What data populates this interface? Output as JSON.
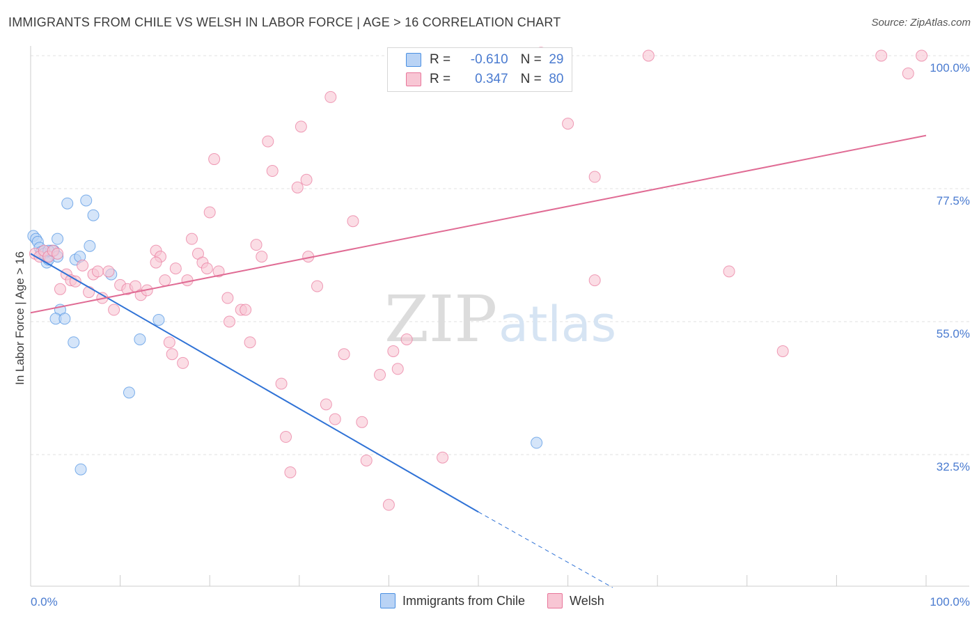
{
  "title": "IMMIGRANTS FROM CHILE VS WELSH IN LABOR FORCE | AGE > 16 CORRELATION CHART",
  "source": "Source: ZipAtlas.com",
  "watermark": {
    "zip": "ZIP",
    "atlas": "atlas"
  },
  "legend_box": {
    "rows": [
      {
        "r_label": "R =",
        "r_value": "-0.610",
        "n_label": "N =",
        "n_value": "29",
        "color": "#b9d3f5"
      },
      {
        "r_label": "R =",
        "r_value": "0.347",
        "n_label": "N =",
        "n_value": "80",
        "color": "#f8c6d4"
      }
    ]
  },
  "bottom_legend": [
    {
      "label": "Immigrants from Chile",
      "color": "#b9d3f5"
    },
    {
      "label": "Welsh",
      "color": "#f8c6d4"
    }
  ],
  "chart_data": {
    "type": "scatter",
    "ylabel": "In Labor Force | Age > 16",
    "xlabel": "",
    "xlim": [
      0,
      100
    ],
    "ylim": [
      10,
      102
    ],
    "y_ticks": [
      {
        "value": 100,
        "label": "100.0%"
      },
      {
        "value": 77.5,
        "label": "77.5%"
      },
      {
        "value": 55,
        "label": "55.0%"
      },
      {
        "value": 32.5,
        "label": "32.5%"
      }
    ],
    "x_tick_labels": [
      {
        "value": 0,
        "label": "0.0%"
      },
      {
        "value": 100,
        "label": "100.0%"
      }
    ],
    "grid": "horizontal dashed",
    "series": [
      {
        "name": "Immigrants from Chile",
        "color": "#4a90e2",
        "fill": "#b9d3f5",
        "line_color": "#2f72d6",
        "trend": {
          "x0": 0,
          "y0": 66.5,
          "x1": 50,
          "y1": 22.8,
          "dash_to_x": 65,
          "dash_to_y": 10
        },
        "points": [
          [
            0.3,
            69.5
          ],
          [
            0.6,
            69
          ],
          [
            0.8,
            68.5
          ],
          [
            1.0,
            67.5
          ],
          [
            1.2,
            66.8
          ],
          [
            1.5,
            66.5
          ],
          [
            1.8,
            65
          ],
          [
            2.0,
            65.5
          ],
          [
            2.3,
            67
          ],
          [
            2.6,
            67
          ],
          [
            3.0,
            69
          ],
          [
            3.3,
            57
          ],
          [
            2.8,
            55.5
          ],
          [
            3.8,
            55.5
          ],
          [
            4.1,
            75
          ],
          [
            5.0,
            65.5
          ],
          [
            5.5,
            66
          ],
          [
            6.2,
            75.5
          ],
          [
            6.6,
            67.8
          ],
          [
            7.0,
            73
          ],
          [
            4.8,
            51.5
          ],
          [
            9.0,
            63
          ],
          [
            11.0,
            43
          ],
          [
            12.2,
            52
          ],
          [
            14.3,
            55.3
          ],
          [
            56.5,
            34.5
          ],
          [
            5.6,
            30
          ],
          [
            2.0,
            67
          ],
          [
            3.0,
            66
          ]
        ]
      },
      {
        "name": "Welsh",
        "color": "#e8759a",
        "fill": "#f8c6d4",
        "line_color": "#e06b94",
        "trend": {
          "x0": 0,
          "y0": 56.5,
          "x1": 100,
          "y1": 86.5
        },
        "points": [
          [
            0.5,
            66.5
          ],
          [
            1.0,
            66
          ],
          [
            1.5,
            67
          ],
          [
            2.0,
            66
          ],
          [
            2.5,
            67
          ],
          [
            3.0,
            66.5
          ],
          [
            3.3,
            60.5
          ],
          [
            4.0,
            63
          ],
          [
            4.5,
            62
          ],
          [
            5.0,
            61.8
          ],
          [
            5.8,
            64.5
          ],
          [
            6.5,
            60
          ],
          [
            7.0,
            63
          ],
          [
            7.5,
            63.5
          ],
          [
            8.0,
            59
          ],
          [
            8.7,
            63.5
          ],
          [
            9.3,
            57
          ],
          [
            10.0,
            61.2
          ],
          [
            10.8,
            60.5
          ],
          [
            11.7,
            61
          ],
          [
            12.3,
            59.5
          ],
          [
            13.0,
            60.3
          ],
          [
            14.0,
            67
          ],
          [
            14.5,
            66
          ],
          [
            14.0,
            65
          ],
          [
            15.0,
            62
          ],
          [
            15.5,
            51.5
          ],
          [
            15.8,
            49.5
          ],
          [
            16.2,
            64
          ],
          [
            17.0,
            48
          ],
          [
            17.5,
            62
          ],
          [
            18.0,
            69
          ],
          [
            18.7,
            66.5
          ],
          [
            19.2,
            65
          ],
          [
            19.7,
            64
          ],
          [
            20.0,
            73.5
          ],
          [
            20.5,
            82.5
          ],
          [
            21.0,
            63.5
          ],
          [
            22.0,
            59
          ],
          [
            22.2,
            55
          ],
          [
            23.5,
            57
          ],
          [
            24.0,
            57
          ],
          [
            24.5,
            51.5
          ],
          [
            25.2,
            68
          ],
          [
            25.8,
            66
          ],
          [
            26.5,
            85.5
          ],
          [
            27.0,
            80.5
          ],
          [
            28.0,
            44.5
          ],
          [
            28.5,
            35.5
          ],
          [
            29.0,
            29.5
          ],
          [
            29.8,
            77.7
          ],
          [
            30.2,
            88
          ],
          [
            30.8,
            79
          ],
          [
            31.0,
            66
          ],
          [
            32.0,
            61
          ],
          [
            33.0,
            41
          ],
          [
            33.5,
            93
          ],
          [
            34.0,
            38.5
          ],
          [
            35.0,
            49.5
          ],
          [
            36.0,
            72
          ],
          [
            37.0,
            38
          ],
          [
            37.5,
            31.5
          ],
          [
            39.0,
            46
          ],
          [
            40.0,
            24
          ],
          [
            40.5,
            50
          ],
          [
            41.0,
            47
          ],
          [
            42.0,
            52
          ],
          [
            45.0,
            100
          ],
          [
            48.0,
            100
          ],
          [
            57.0,
            100.5
          ],
          [
            60.0,
            88.5
          ],
          [
            63.0,
            79.5
          ],
          [
            69.0,
            100
          ],
          [
            78.0,
            63.5
          ],
          [
            84.0,
            50
          ],
          [
            95.0,
            100
          ],
          [
            98.0,
            97
          ],
          [
            99.5,
            100
          ],
          [
            63.0,
            62
          ],
          [
            46.0,
            32
          ]
        ]
      }
    ]
  }
}
